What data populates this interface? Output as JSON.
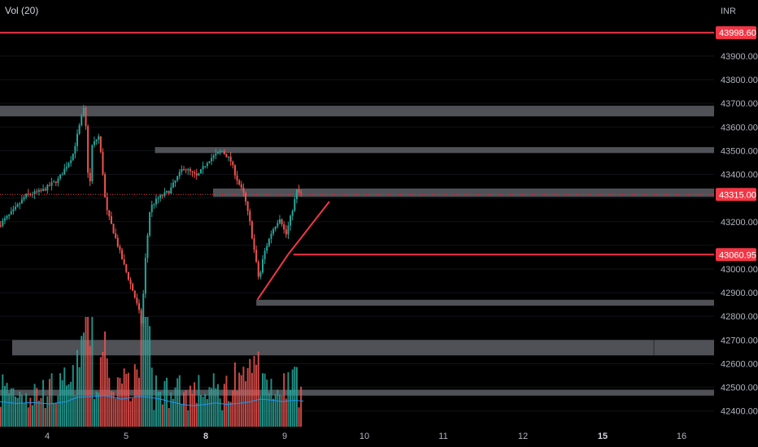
{
  "legend": {
    "indicator": "Vol (20)"
  },
  "currency": "INR",
  "colors": {
    "background": "#000000",
    "up": "#26a69a",
    "down": "#ef5350",
    "level_line": "#f23645",
    "zone": "#5d5f66",
    "volume_ma": "#2196f3",
    "axis_text": "#b2b5be"
  },
  "chart_data": {
    "type": "candlestick",
    "y_axis": {
      "range": [
        42320,
        44020
      ],
      "ticks": [
        42400,
        42500,
        42600,
        42700,
        42800,
        42900,
        43000,
        43100,
        43200,
        43300,
        43400,
        43500,
        43600,
        43700,
        43800,
        43900
      ],
      "tick_labels": [
        "42400.00",
        "42500.00",
        "42600.00",
        "42700.00",
        "42800.00",
        "42900.00",
        "43000.00",
        "43100.00",
        "43200.00",
        "43300.00",
        "43400.00",
        "43500.00",
        "43600.00",
        "43700.00",
        "43800.00",
        "43900.00"
      ]
    },
    "x_axis": {
      "range": [
        3.4,
        16.3
      ],
      "ticks": [
        {
          "value": 4,
          "label": "4",
          "bold": false
        },
        {
          "value": 5,
          "label": "5",
          "bold": false
        },
        {
          "value": 8,
          "label": "8",
          "bold": true,
          "pos": 6
        },
        {
          "value": 9,
          "label": "9",
          "bold": false,
          "pos": 7
        },
        {
          "value": 10,
          "label": "10",
          "bold": false,
          "pos": 8
        },
        {
          "value": 11,
          "label": "11",
          "bold": false,
          "pos": 9
        },
        {
          "value": 12,
          "label": "12",
          "bold": false,
          "pos": 10
        },
        {
          "value": 15,
          "label": "15",
          "bold": true,
          "pos": 11
        },
        {
          "value": 16,
          "label": "16",
          "bold": false,
          "pos": 12
        }
      ]
    },
    "price_path": [
      [
        3.4,
        43180
      ],
      [
        3.7,
        43250
      ],
      [
        3.9,
        43310
      ],
      [
        4.2,
        43330
      ],
      [
        4.5,
        43380
      ],
      [
        4.75,
        43480
      ],
      [
        4.92,
        43650
      ],
      [
        4.97,
        43690
      ],
      [
        5.05,
        43300
      ],
      [
        5.1,
        43520
      ],
      [
        5.22,
        43560
      ],
      [
        5.28,
        43450
      ],
      [
        5.35,
        43260
      ],
      [
        5.5,
        43150
      ],
      [
        5.7,
        43000
      ],
      [
        5.85,
        42900
      ],
      [
        5.95,
        42820
      ],
      [
        6.0,
        42760
      ],
      [
        6.05,
        43000
      ],
      [
        6.15,
        43260
      ],
      [
        6.3,
        43300
      ],
      [
        6.5,
        43330
      ],
      [
        6.75,
        43430
      ],
      [
        7.0,
        43390
      ],
      [
        7.2,
        43460
      ],
      [
        7.45,
        43500
      ],
      [
        7.6,
        43460
      ],
      [
        7.72,
        43380
      ],
      [
        7.85,
        43310
      ],
      [
        7.95,
        43200
      ],
      [
        8.05,
        43050
      ],
      [
        8.12,
        42950
      ],
      [
        8.2,
        43060
      ],
      [
        8.35,
        43160
      ],
      [
        8.5,
        43220
      ],
      [
        8.6,
        43140
      ],
      [
        8.7,
        43230
      ],
      [
        8.8,
        43330
      ],
      [
        8.88,
        43315
      ]
    ],
    "volume_ma_path": [
      [
        3.4,
        42440
      ],
      [
        3.7,
        42432
      ],
      [
        4.0,
        42436
      ],
      [
        4.3,
        42430
      ],
      [
        4.6,
        42440
      ],
      [
        4.8,
        42458
      ],
      [
        5.0,
        42460
      ],
      [
        5.3,
        42465
      ],
      [
        5.6,
        42450
      ],
      [
        5.9,
        42462
      ],
      [
        6.1,
        42458
      ],
      [
        6.3,
        42450
      ],
      [
        6.5,
        42438
      ],
      [
        6.7,
        42428
      ],
      [
        6.9,
        42422
      ],
      [
        7.1,
        42428
      ],
      [
        7.3,
        42434
      ],
      [
        7.5,
        42428
      ],
      [
        7.7,
        42432
      ],
      [
        7.9,
        42438
      ],
      [
        8.1,
        42450
      ],
      [
        8.3,
        42446
      ],
      [
        8.5,
        42440
      ],
      [
        8.7,
        42445
      ],
      [
        8.88,
        42442
      ]
    ],
    "horizontal_levels": [
      {
        "price": 43998.6,
        "label": "43998.60",
        "x_start": 3.4,
        "badge": true
      },
      {
        "price": 43060.95,
        "label": "43060.95",
        "x_start": 8.7,
        "badge": true
      },
      {
        "price": 43315.0,
        "label": "43315.00",
        "x_start": 3.4,
        "badge": true,
        "dotted": true
      }
    ],
    "zones": [
      {
        "top": 43690,
        "bottom": 43645,
        "x_start": 3.4,
        "x_end": 16.3
      },
      {
        "top": 43515,
        "bottom": 43490,
        "x_start": 6.2,
        "x_end": 16.3
      },
      {
        "top": 43340,
        "bottom": 43305,
        "x_start": 7.25,
        "x_end": 16.3
      },
      {
        "top": 42870,
        "bottom": 42845,
        "x_start": 8.03,
        "x_end": 16.3
      },
      {
        "top": 42700,
        "bottom": 42635,
        "x_start": 3.62,
        "x_end": 16.3
      },
      {
        "top": 42490,
        "bottom": 42465,
        "x_start": 3.4,
        "x_end": 16.3
      }
    ],
    "trendlines": [
      {
        "from": [
          8.05,
          42870
        ],
        "to": [
          8.6,
          43060
        ]
      },
      {
        "from": [
          8.6,
          43060
        ],
        "to": [
          9.35,
          43285
        ]
      }
    ]
  }
}
